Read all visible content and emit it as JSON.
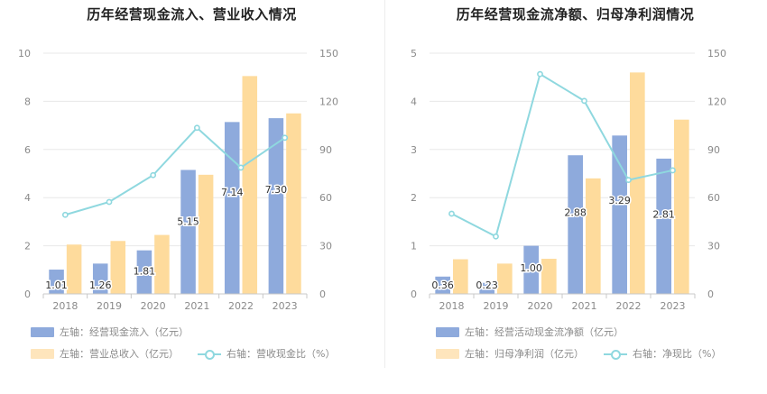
{
  "colors": {
    "bar_primary": "#8eaadc",
    "bar_secondary": "#fedb9c",
    "line": "#8fd8df",
    "grid": "#e8e8e8",
    "axis": "#c8c8c8"
  },
  "chart_data": [
    {
      "type": "bar+line",
      "title": "历年经营现金流入、营业收入情况",
      "categories": [
        "2018",
        "2019",
        "2020",
        "2021",
        "2022",
        "2023"
      ],
      "left_axis": {
        "min": 0,
        "max": 10,
        "ticks": [
          "0",
          "2",
          "4",
          "6",
          "8",
          "10"
        ]
      },
      "right_axis": {
        "min": 0,
        "max": 150,
        "ticks": [
          "0",
          "30",
          "60",
          "90",
          "120",
          "150"
        ]
      },
      "series": [
        {
          "name": "左轴：经营现金流入（亿元）",
          "kind": "bar",
          "axis": "left",
          "values": [
            1.01,
            1.26,
            1.81,
            5.15,
            7.14,
            7.3
          ],
          "labels": [
            "1.01",
            "1.26",
            "1.81",
            "5.15",
            "7.14",
            "7.30"
          ]
        },
        {
          "name": "左轴：营业总收入（亿元）",
          "kind": "bar",
          "axis": "left",
          "values": [
            2.05,
            2.2,
            2.45,
            4.95,
            9.05,
            7.5
          ]
        },
        {
          "name": "右轴：营收现金比（%）",
          "kind": "line",
          "axis": "right",
          "values": [
            49.3,
            57.3,
            74,
            103.5,
            78.7,
            97.3
          ]
        }
      ]
    },
    {
      "type": "bar+line",
      "title": "历年经营现金流净额、归母净利润情况",
      "categories": [
        "2018",
        "2019",
        "2020",
        "2021",
        "2022",
        "2023"
      ],
      "left_axis": {
        "min": 0,
        "max": 5,
        "ticks": [
          "0",
          "1",
          "2",
          "3",
          "4",
          "5"
        ]
      },
      "right_axis": {
        "min": 0,
        "max": 150,
        "ticks": [
          "0",
          "30",
          "60",
          "90",
          "120",
          "150"
        ]
      },
      "series": [
        {
          "name": "左轴：经营活动现金流净额（亿元）",
          "kind": "bar",
          "axis": "left",
          "values": [
            0.36,
            0.23,
            1.0,
            2.88,
            3.29,
            2.81
          ],
          "labels": [
            "0.36",
            "0.23",
            "1.00",
            "2.88",
            "3.29",
            "2.81"
          ]
        },
        {
          "name": "左轴：归母净利润（亿元）",
          "kind": "bar",
          "axis": "left",
          "values": [
            0.72,
            0.63,
            0.73,
            2.4,
            4.6,
            3.62
          ]
        },
        {
          "name": "右轴：净现比（%）",
          "kind": "line",
          "axis": "right",
          "values": [
            50,
            35.8,
            137,
            120.3,
            71,
            77
          ]
        }
      ]
    }
  ]
}
